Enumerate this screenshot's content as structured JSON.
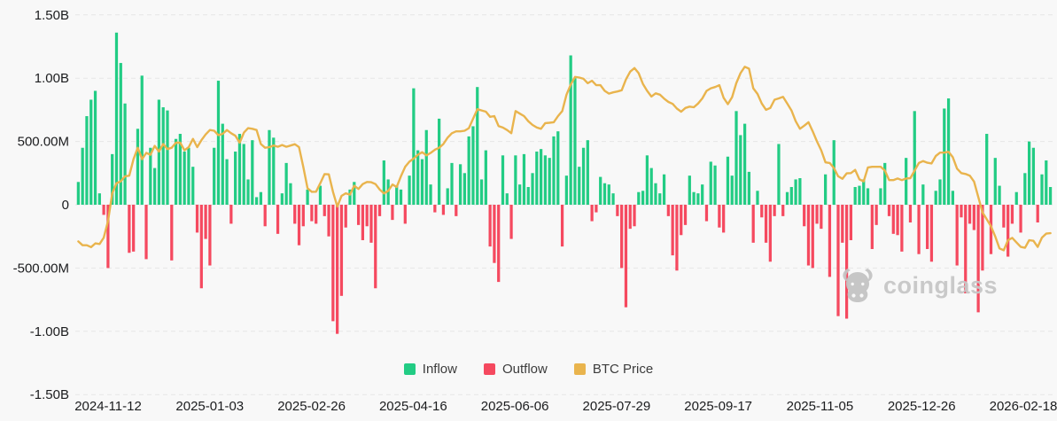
{
  "chart_data": {
    "type": "bar",
    "subtype": "bar-line-combo",
    "title": "",
    "unit": "left axis in USD, M = millions, B = billions",
    "grid": "dashed horizontal gridlines",
    "legend_position": "bottom-center",
    "series": [
      {
        "name": "Inflow",
        "type": "bar",
        "color": "#22cc84",
        "sign": "positive bars"
      },
      {
        "name": "Outflow",
        "type": "bar",
        "color": "#f5495f",
        "sign": "negative bars"
      },
      {
        "name": "BTC Price",
        "type": "line",
        "color": "#e9b44d"
      }
    ],
    "y_axis": {
      "range_millions": [
        -1500,
        1500
      ],
      "ticks": [
        {
          "label": "1.50B",
          "value": 1500
        },
        {
          "label": "1.00B",
          "value": 1000
        },
        {
          "label": "500.00M",
          "value": 500
        },
        {
          "label": "0",
          "value": 0
        },
        {
          "label": "-500.00M",
          "value": -500
        },
        {
          "label": "-1.00B",
          "value": -1000
        },
        {
          "label": "-1.50B",
          "value": -1500
        }
      ]
    },
    "x_axis": {
      "tick_labels": [
        "2024-11-12",
        "2025-01-03",
        "2025-02-26",
        "2025-04-16",
        "2025-06-06",
        "2025-07-29",
        "2025-09-17",
        "2025-11-05",
        "2025-12-26",
        "2026-02-18"
      ]
    },
    "flows_millions": [
      180,
      450,
      700,
      830,
      900,
      90,
      -80,
      -500,
      400,
      1360,
      1120,
      800,
      -380,
      -370,
      600,
      1020,
      -430,
      450,
      290,
      830,
      770,
      745,
      -440,
      520,
      560,
      420,
      450,
      300,
      -220,
      -660,
      -270,
      -480,
      450,
      980,
      640,
      360,
      -150,
      420,
      560,
      480,
      200,
      510,
      60,
      100,
      -170,
      590,
      530,
      -230,
      90,
      330,
      170,
      -150,
      -320,
      -170,
      120,
      -130,
      -150,
      150,
      -90,
      -250,
      -920,
      -1020,
      -720,
      -180,
      120,
      180,
      -160,
      -280,
      -170,
      -300,
      -660,
      -90,
      350,
      200,
      -120,
      150,
      120,
      -150,
      230,
      920,
      430,
      360,
      590,
      160,
      -60,
      680,
      -80,
      130,
      330,
      -90,
      320,
      250,
      540,
      620,
      930,
      200,
      430,
      -330,
      -460,
      -610,
      390,
      90,
      -270,
      390,
      160,
      400,
      140,
      250,
      420,
      440,
      390,
      370,
      540,
      580,
      -330,
      230,
      1180,
      1000,
      300,
      450,
      510,
      -130,
      -60,
      220,
      170,
      160,
      90,
      -90,
      -500,
      -810,
      -190,
      -170,
      100,
      110,
      390,
      290,
      170,
      90,
      240,
      -90,
      -400,
      -520,
      -240,
      -160,
      230,
      100,
      90,
      160,
      -130,
      340,
      310,
      -180,
      -220,
      380,
      230,
      740,
      550,
      640,
      260,
      -300,
      110,
      -100,
      -300,
      -450,
      -90,
      480,
      -90,
      100,
      140,
      200,
      210,
      -170,
      -480,
      -500,
      -150,
      -190,
      240,
      -570,
      510,
      -880,
      -300,
      -900,
      -280,
      140,
      150,
      200,
      130,
      -350,
      -160,
      130,
      330,
      -90,
      -230,
      -240,
      -370,
      370,
      -140,
      740,
      -390,
      160,
      -350,
      -450,
      110,
      200,
      760,
      840,
      110,
      -480,
      -100,
      -700,
      -150,
      -200,
      -850,
      -520,
      560,
      -390,
      370,
      150,
      -180,
      -410,
      -150,
      100,
      -220,
      250,
      500,
      450,
      -140,
      240,
      350,
      140
    ],
    "btc_price_line_millions": [
      -290,
      -320,
      -320,
      -335,
      -305,
      -310,
      -260,
      -130,
      90,
      170,
      185,
      225,
      230,
      360,
      450,
      360,
      410,
      395,
      465,
      420,
      480,
      440,
      450,
      490,
      490,
      430,
      455,
      520,
      455,
      510,
      555,
      590,
      585,
      550,
      560,
      590,
      565,
      545,
      490,
      570,
      605,
      600,
      590,
      480,
      450,
      455,
      468,
      458,
      472,
      458,
      468,
      478,
      455,
      300,
      130,
      102,
      103,
      170,
      242,
      240,
      100,
      -15,
      70,
      90,
      80,
      150,
      125,
      163,
      180,
      178,
      163,
      120,
      89,
      110,
      160,
      140,
      225,
      300,
      340,
      365,
      395,
      415,
      390,
      410,
      435,
      450,
      480,
      530,
      565,
      580,
      580,
      585,
      605,
      680,
      755,
      745,
      735,
      695,
      700,
      622,
      610,
      590,
      565,
      740,
      720,
      700,
      660,
      630,
      610,
      600,
      645,
      648,
      652,
      700,
      740,
      870,
      950,
      1010,
      1005,
      995,
      960,
      980,
      945,
      945,
      900,
      878,
      888,
      895,
      905,
      990,
      1052,
      1080,
      1040,
      955,
      900,
      855,
      880,
      870,
      838,
      812,
      797,
      760,
      735,
      765,
      775,
      770,
      800,
      840,
      900,
      920,
      930,
      945,
      845,
      795,
      850,
      960,
      1040,
      1090,
      1075,
      920,
      875,
      800,
      750,
      765,
      830,
      840,
      852,
      800,
      745,
      660,
      600,
      625,
      652,
      580,
      500,
      430,
      335,
      330,
      290,
      225,
      205,
      248,
      250,
      275,
      200,
      185,
      295,
      300,
      300,
      300,
      270,
      195,
      195,
      207,
      195,
      207,
      210,
      270,
      330,
      345,
      332,
      326,
      385,
      412,
      412,
      418,
      375,
      285,
      250,
      243,
      230,
      183,
      60,
      -60,
      -115,
      -170,
      -251,
      -345,
      -360,
      -280,
      -262,
      -298,
      -333,
      -340,
      -280,
      -285,
      -333,
      -260,
      -228,
      -225
    ]
  },
  "legend": {
    "items": [
      {
        "label": "Inflow",
        "color": "#22cc84"
      },
      {
        "label": "Outflow",
        "color": "#f5495f"
      },
      {
        "label": "BTC Price",
        "color": "#e9b44d"
      }
    ]
  },
  "watermark": {
    "brand": "coinglass",
    "icon": "bull-logo"
  },
  "colors": {
    "background": "#f8f8f8",
    "grid": "#e5e5e5",
    "axis_text": "#1b1c1e",
    "inflow": "#22cc84",
    "outflow": "#f5495f",
    "btc_line": "#e9b44d",
    "watermark": "#c7c7c7"
  }
}
